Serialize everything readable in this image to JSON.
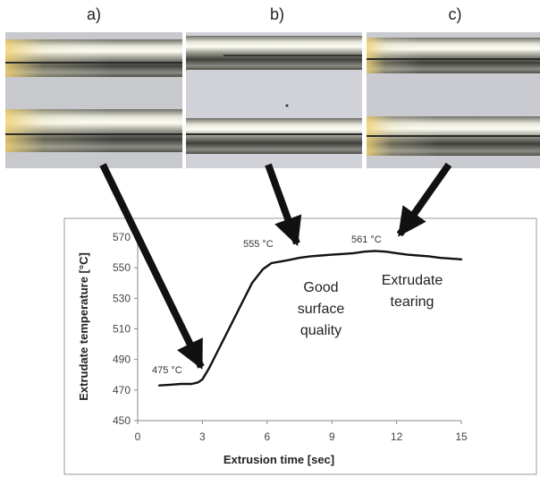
{
  "panels": [
    {
      "id": "a",
      "label": "a)",
      "photo": "extrudate-photo"
    },
    {
      "id": "b",
      "label": "b)",
      "photo": "extrudate-photo"
    },
    {
      "id": "c",
      "label": "c)",
      "photo": "extrudate-photo"
    }
  ],
  "chart_data": {
    "type": "line",
    "title": "",
    "xlabel": "Extrusion time [sec]",
    "ylabel": "Extrudate temperature [°C]",
    "xlim": [
      0,
      15
    ],
    "ylim": [
      450,
      570
    ],
    "xticks": [
      0,
      3,
      6,
      9,
      12,
      15
    ],
    "yticks": [
      450,
      470,
      490,
      510,
      530,
      550,
      570
    ],
    "grid": false,
    "series": [
      {
        "color": "#111111",
        "x": [
          1,
          1.5,
          2,
          2.5,
          2.8,
          3,
          3.3,
          3.8,
          4.3,
          4.8,
          5.3,
          5.8,
          6.2,
          6.6,
          7,
          7.5,
          8,
          8.5,
          9,
          9.5,
          10,
          10.5,
          11,
          11.5,
          12,
          12.5,
          13,
          13.5,
          14,
          14.5,
          15
        ],
        "y": [
          473,
          473.5,
          474,
          474,
          475,
          477,
          484,
          498,
          512,
          526,
          540,
          549,
          553,
          554,
          555,
          556.5,
          557.5,
          558,
          558.5,
          559,
          559.5,
          560.5,
          561,
          560.5,
          559.5,
          558.5,
          558,
          557.5,
          556.5,
          556,
          555.5
        ]
      }
    ],
    "annotations": [
      {
        "text": "475 °C",
        "x": 2.8,
        "y": 475
      },
      {
        "text": "555 °C",
        "x": 7,
        "y": 555
      },
      {
        "text": "561 °C",
        "x": 11,
        "y": 561
      }
    ],
    "notes": [
      {
        "lines": [
          "Good",
          "surface",
          "quality"
        ]
      },
      {
        "lines": [
          "Extrudate",
          "tearing"
        ]
      }
    ]
  }
}
